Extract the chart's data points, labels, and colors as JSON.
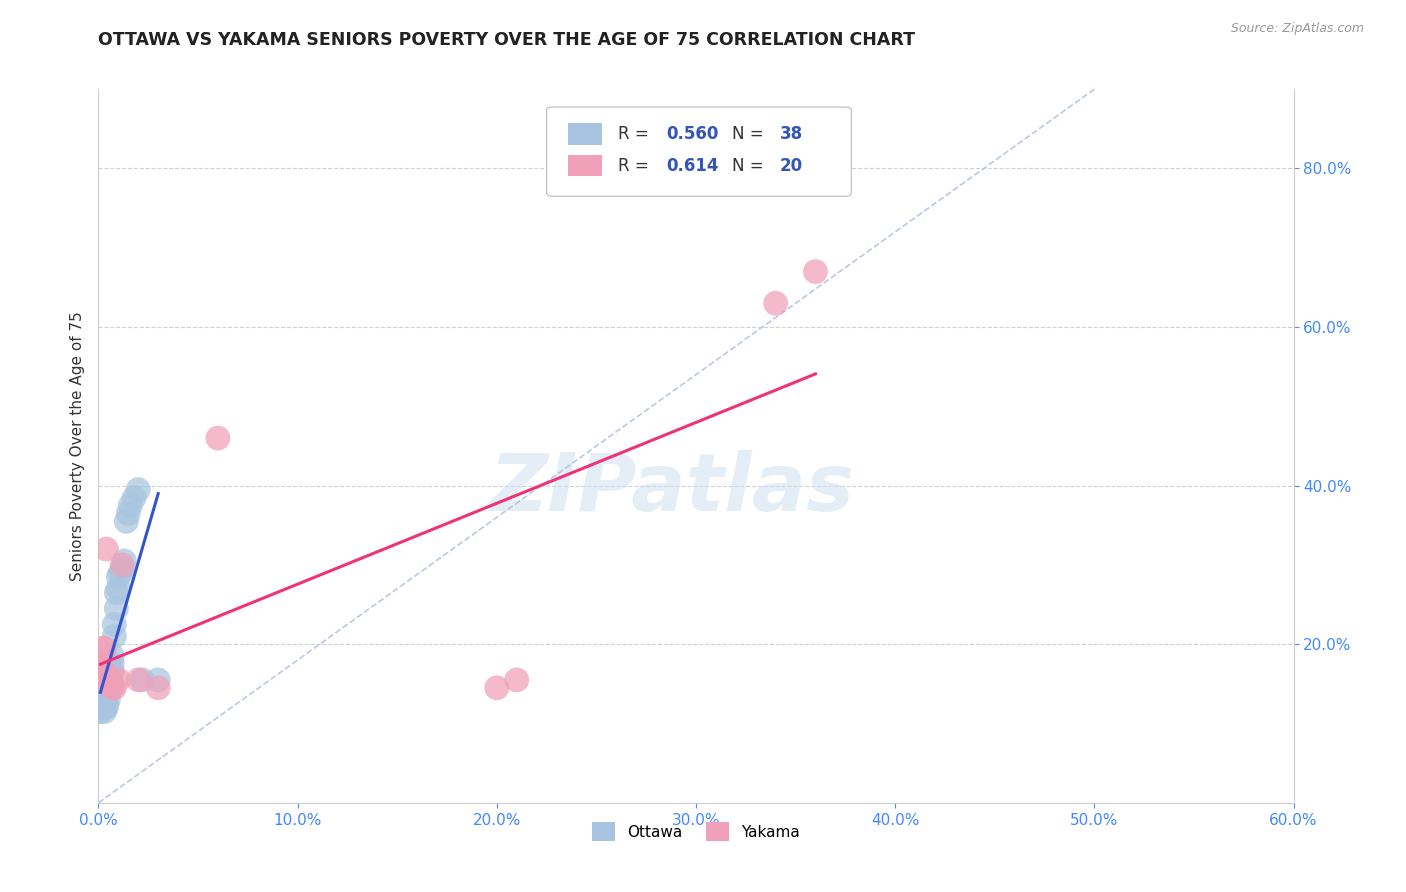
{
  "title": "OTTAWA VS YAKAMA SENIORS POVERTY OVER THE AGE OF 75 CORRELATION CHART",
  "source": "Source: ZipAtlas.com",
  "ylabel": "Seniors Poverty Over the Age of 75",
  "watermark": "ZIPatlas",
  "xlim": [
    0.0,
    0.6
  ],
  "ylim": [
    0.0,
    0.9
  ],
  "xticks": [
    0.0,
    0.1,
    0.2,
    0.3,
    0.4,
    0.5,
    0.6
  ],
  "yticks": [
    0.2,
    0.4,
    0.6,
    0.8
  ],
  "grid_color": "#cccccc",
  "background_color": "#ffffff",
  "ottawa_color": "#a8c4e0",
  "yakama_color": "#f0a0b8",
  "ottawa_line_color": "#3355cc",
  "yakama_line_color": "#ee3377",
  "ottawa_R": 0.56,
  "ottawa_N": 38,
  "yakama_R": 0.614,
  "yakama_N": 20,
  "legend_color": "#3355bb",
  "title_fontsize": 12.5,
  "axis_label_fontsize": 11,
  "tick_fontsize": 11,
  "tick_color": "#4488ff",
  "ottawa_x": [
    0.001,
    0.001,
    0.002,
    0.002,
    0.002,
    0.003,
    0.003,
    0.003,
    0.003,
    0.004,
    0.004,
    0.004,
    0.005,
    0.005,
    0.005,
    0.005,
    0.006,
    0.006,
    0.006,
    0.007,
    0.007,
    0.007,
    0.008,
    0.008,
    0.009,
    0.009,
    0.01,
    0.01,
    0.011,
    0.012,
    0.013,
    0.014,
    0.015,
    0.016,
    0.018,
    0.02,
    0.022,
    0.03
  ],
  "ottawa_y": [
    0.115,
    0.125,
    0.12,
    0.13,
    0.135,
    0.115,
    0.12,
    0.125,
    0.14,
    0.12,
    0.125,
    0.155,
    0.13,
    0.145,
    0.155,
    0.175,
    0.145,
    0.155,
    0.165,
    0.165,
    0.175,
    0.185,
    0.21,
    0.225,
    0.245,
    0.265,
    0.27,
    0.285,
    0.29,
    0.295,
    0.305,
    0.355,
    0.365,
    0.375,
    0.385,
    0.395,
    0.155,
    0.155
  ],
  "yakama_x": [
    0.001,
    0.001,
    0.002,
    0.002,
    0.003,
    0.003,
    0.004,
    0.005,
    0.006,
    0.007,
    0.008,
    0.01,
    0.012,
    0.02,
    0.03,
    0.06,
    0.2,
    0.21,
    0.34,
    0.36
  ],
  "yakama_y": [
    0.165,
    0.175,
    0.155,
    0.195,
    0.165,
    0.195,
    0.32,
    0.155,
    0.155,
    0.145,
    0.145,
    0.155,
    0.3,
    0.155,
    0.145,
    0.46,
    0.145,
    0.155,
    0.63,
    0.67
  ],
  "dashed_line_color": "#aabbdd",
  "dashed_line_x": [
    0.0,
    0.5
  ],
  "dashed_line_y": [
    0.0,
    0.9
  ]
}
